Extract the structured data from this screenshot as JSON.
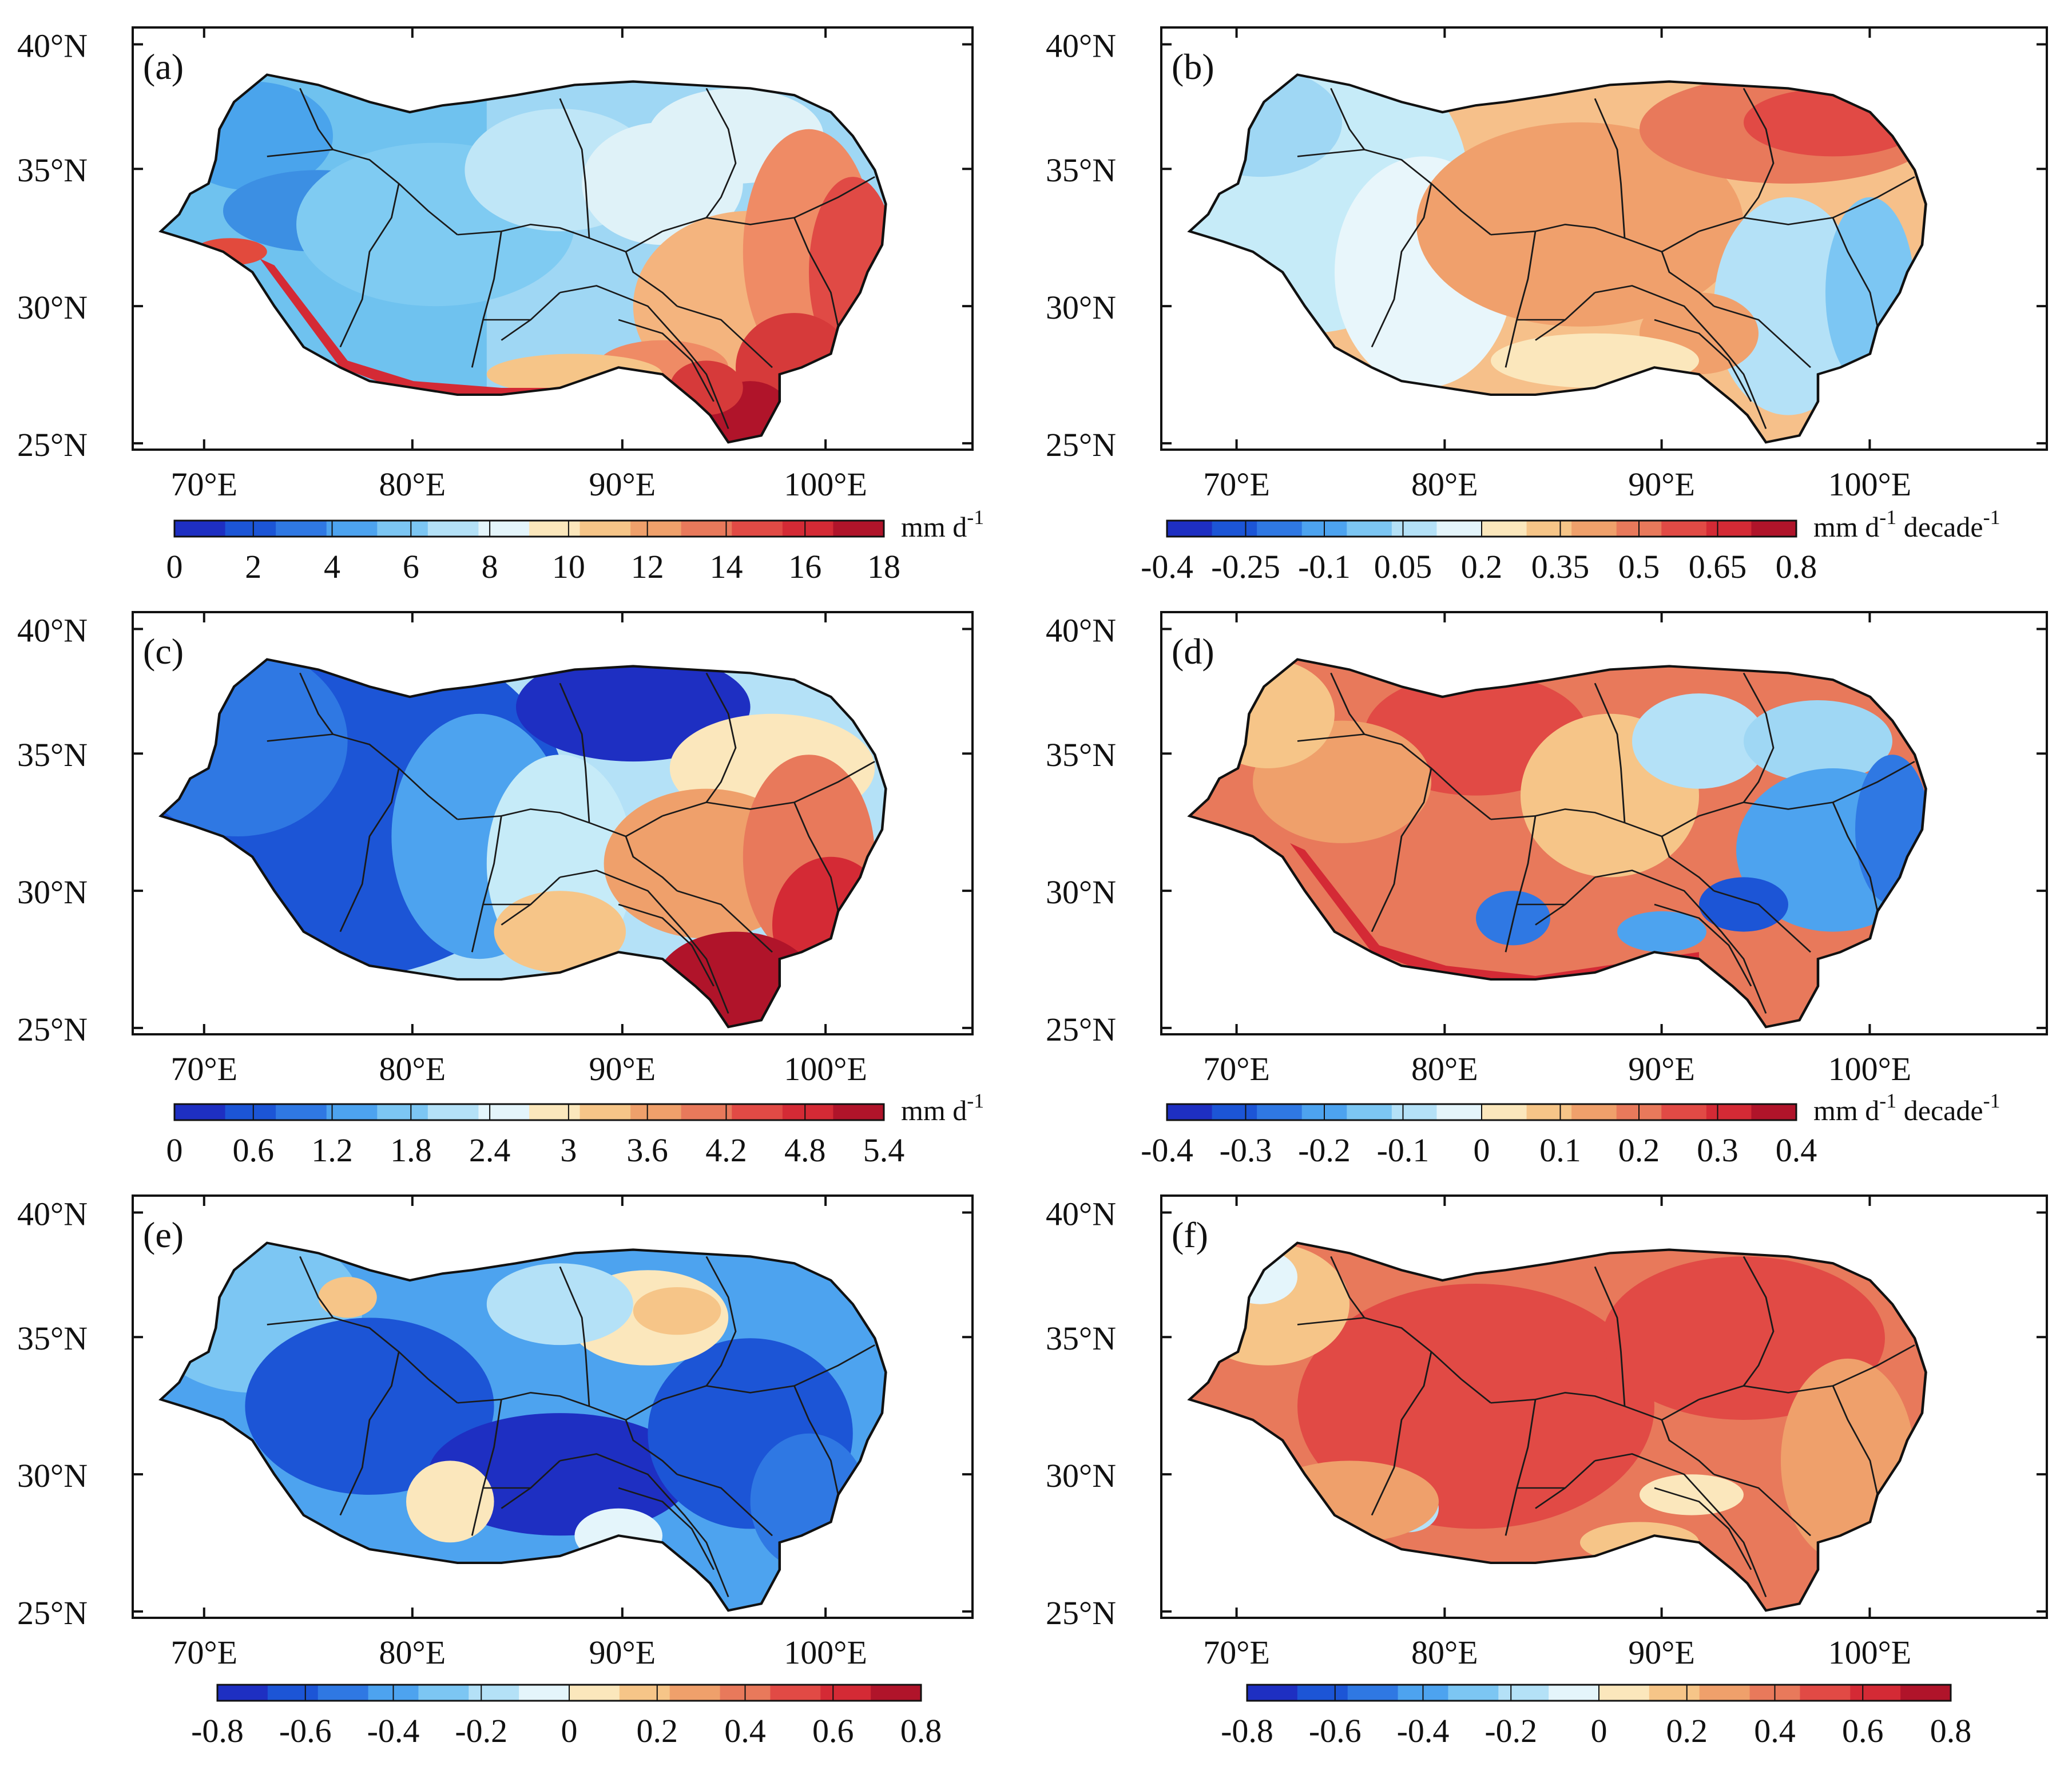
{
  "figure": {
    "lat_labels": [
      "25°N",
      "30°N",
      "35°N",
      "40°N"
    ],
    "lon_labels": [
      "70°E",
      "80°E",
      "90°E",
      "100°E"
    ],
    "colors": {
      "blue_red": [
        "#1e2fc2",
        "#1c55d6",
        "#2f78e3",
        "#4da3ef",
        "#7cc6f3",
        "#b4e1f7",
        "#e4f5fb",
        "#fbe7bc",
        "#f6c588",
        "#efa06b",
        "#e8795b",
        "#e14a45",
        "#d42a35",
        "#b0142a"
      ]
    }
  },
  "panels": [
    {
      "label": "(a)",
      "colorbar": {
        "unit_main": "mm d",
        "unit_sup": "-1",
        "unit_tail": "",
        "ticks": [
          "0",
          "2",
          "4",
          "6",
          "8",
          "10",
          "12",
          "14",
          "16",
          "18"
        ]
      }
    },
    {
      "label": "(b)",
      "colorbar": {
        "unit_main": "mm d",
        "unit_sup": "-1",
        "unit_tail": " decade",
        "unit_sup2": "-1",
        "ticks": [
          "-0.4",
          "-0.25",
          "-0.1",
          "0.05",
          "0.2",
          "0.35",
          "0.5",
          "0.65",
          "0.8"
        ]
      }
    },
    {
      "label": "(c)",
      "colorbar": {
        "unit_main": "mm d",
        "unit_sup": "-1",
        "unit_tail": "",
        "ticks": [
          "0",
          "0.6",
          "1.2",
          "1.8",
          "2.4",
          "3",
          "3.6",
          "4.2",
          "4.8",
          "5.4"
        ]
      }
    },
    {
      "label": "(d)",
      "colorbar": {
        "unit_main": "mm d",
        "unit_sup": "-1",
        "unit_tail": " decade",
        "unit_sup2": "-1",
        "ticks": [
          "-0.4",
          "-0.3",
          "-0.2",
          "-0.1",
          "0",
          "0.1",
          "0.2",
          "0.3",
          "0.4"
        ]
      }
    },
    {
      "label": "(e)",
      "colorbar": {
        "unit_main": "",
        "unit_sup": "",
        "unit_tail": "",
        "ticks": [
          "-0.8",
          "-0.6",
          "-0.4",
          "-0.2",
          "0",
          "0.2",
          "0.4",
          "0.6",
          "0.8"
        ]
      }
    },
    {
      "label": "(f)",
      "colorbar": {
        "unit_main": "",
        "unit_sup": "",
        "unit_tail": "",
        "ticks": [
          "-0.8",
          "-0.6",
          "-0.4",
          "-0.2",
          "0",
          "0.2",
          "0.4",
          "0.6",
          "0.8"
        ]
      }
    }
  ]
}
